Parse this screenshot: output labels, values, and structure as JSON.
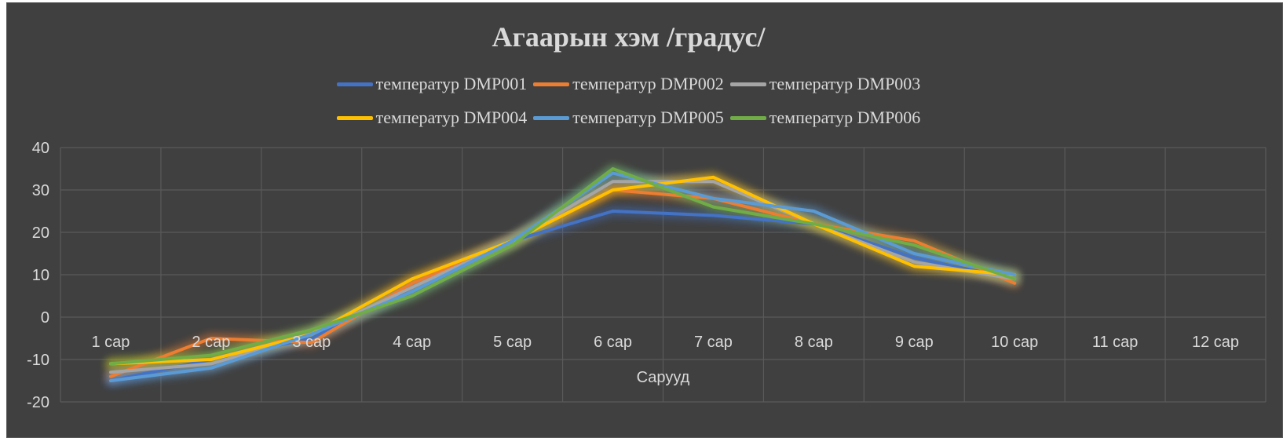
{
  "chart_data": {
    "type": "line",
    "title": "Агаарын хэм /градус/",
    "xlabel": "Сарууд",
    "ylabel": "",
    "categories": [
      "1 сар",
      "2 сар",
      "3 сар",
      "4 сар",
      "5 сар",
      "6 сар",
      "7 сар",
      "8 сар",
      "9 сар",
      "10 сар",
      "11 сар",
      "12 сар"
    ],
    "ylim": [
      -20,
      40
    ],
    "yticks": [
      -20,
      -10,
      0,
      10,
      20,
      30,
      40
    ],
    "grid": true,
    "legend_position": "top",
    "series": [
      {
        "name": "температур  DMP001",
        "color": "#4472c4",
        "values": [
          -15,
          -10,
          -5,
          7,
          18,
          25,
          24,
          22,
          14,
          9,
          null,
          null
        ]
      },
      {
        "name": "температур  DMP002",
        "color": "#ed7d31",
        "values": [
          -14,
          -5,
          -6,
          8,
          18,
          30,
          28,
          22,
          18,
          8,
          null,
          null
        ]
      },
      {
        "name": "температур  DMP003",
        "color": "#a5a5a5",
        "values": [
          -13,
          -11,
          -4,
          7,
          18,
          32,
          32,
          22,
          13,
          9,
          null,
          null
        ]
      },
      {
        "name": "температур  DMP004",
        "color": "#ffc000",
        "values": [
          -11,
          -10,
          -4,
          9,
          18,
          30,
          33,
          22,
          12,
          10,
          null,
          null
        ]
      },
      {
        "name": "температур  DMP005",
        "color": "#5b9bd5",
        "values": [
          -15,
          -12,
          -4,
          6,
          18,
          34,
          28,
          25,
          15,
          10,
          null,
          null
        ]
      },
      {
        "name": "температур  DMP006",
        "color": "#70ad47",
        "values": [
          -11,
          -9,
          -3,
          5,
          17,
          35,
          26,
          22,
          17,
          9,
          null,
          null
        ]
      }
    ]
  }
}
